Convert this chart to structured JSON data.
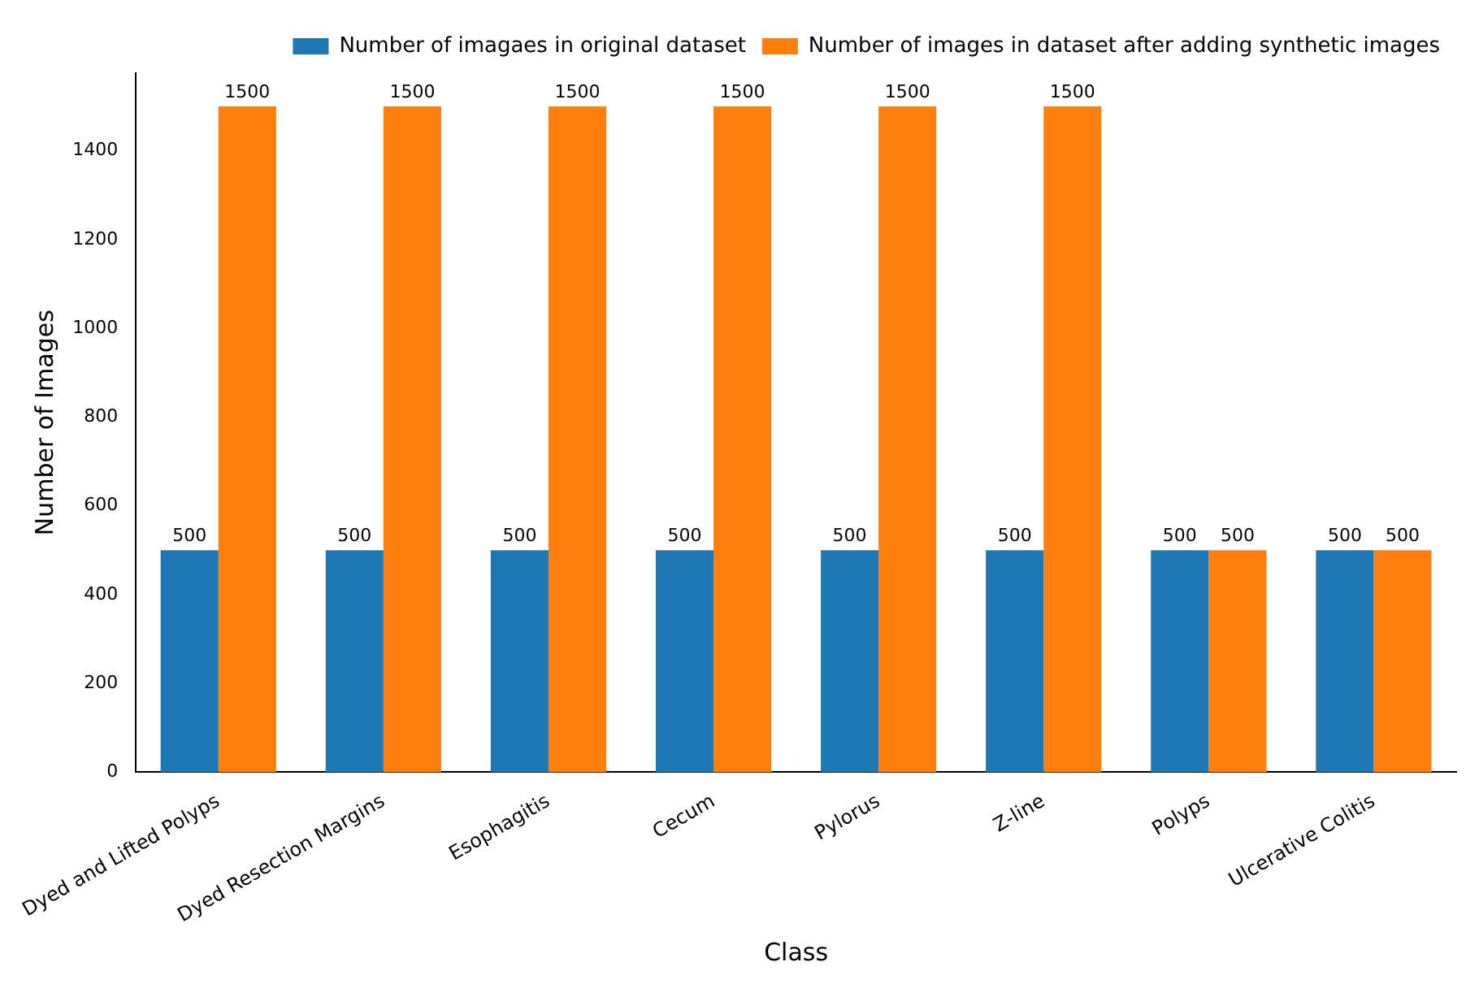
{
  "chart_data": {
    "type": "bar",
    "categories": [
      "Dyed and Lifted Polyps",
      "Dyed Resection Margins",
      "Esophagitis",
      "Cecum",
      "Pylorus",
      "Z-line",
      "Polyps",
      "Ulcerative Colitis"
    ],
    "series": [
      {
        "name": "Number of imagaes in original dataset",
        "color": "#1f77b4",
        "values": [
          500,
          500,
          500,
          500,
          500,
          500,
          500,
          500
        ]
      },
      {
        "name": "Number of images in dataset after adding synthetic images",
        "color": "#ff7f0e",
        "values": [
          1500,
          1500,
          1500,
          1500,
          1500,
          1500,
          500,
          500
        ]
      }
    ],
    "xlabel": "Class",
    "ylabel": "Number of Images",
    "ylim": [
      0,
      1575
    ],
    "yticks": [
      0,
      200,
      400,
      600,
      800,
      1000,
      1200,
      1400
    ],
    "data_labels": true,
    "legend": "top right",
    "grid": false
  }
}
